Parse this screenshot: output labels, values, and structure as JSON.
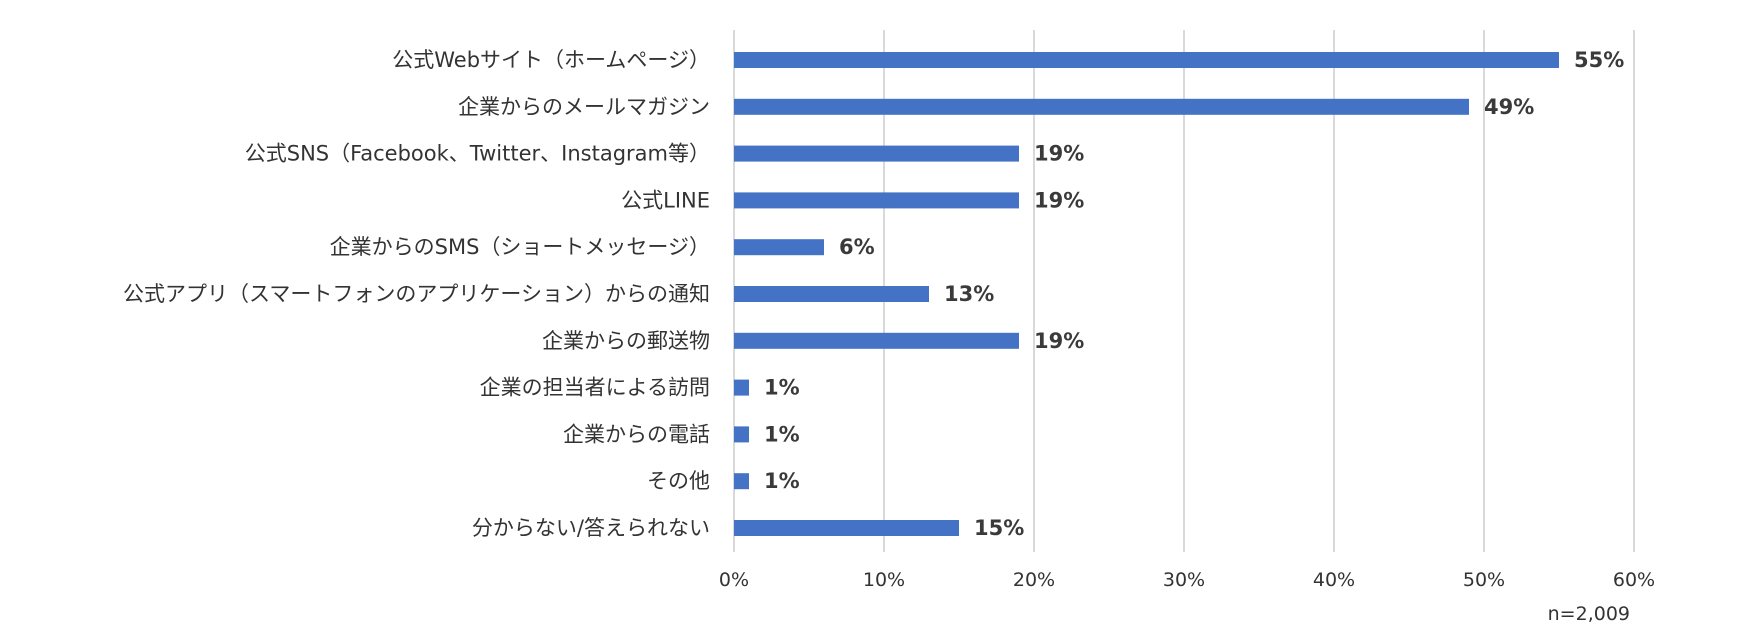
{
  "chart_data": {
    "type": "bar",
    "orientation": "horizontal",
    "categories": [
      "公式Webサイト（ホームページ）",
      "企業からのメールマガジン",
      "公式SNS（Facebook、Twitter、Instagram等）",
      "公式LINE",
      "企業からのSMS（ショートメッセージ）",
      "公式アプリ（スマートフォンのアプリケーション）からの通知",
      "企業からの郵送物",
      "企業の担当者による訪問",
      "企業からの電話",
      "その他",
      "分からない/答えられない"
    ],
    "values": [
      55,
      49,
      19,
      19,
      6,
      13,
      19,
      1,
      1,
      1,
      15
    ],
    "value_labels": [
      "55%",
      "49%",
      "19%",
      "19%",
      "6%",
      "13%",
      "19%",
      "1%",
      "1%",
      "1%",
      "15%"
    ],
    "x_ticks": [
      "0%",
      "10%",
      "20%",
      "30%",
      "40%",
      "50%",
      "60%"
    ],
    "xlim": [
      0,
      60
    ],
    "grid": true,
    "legend": "none",
    "bar_color": "#4472c4",
    "note": "n=2,009"
  }
}
